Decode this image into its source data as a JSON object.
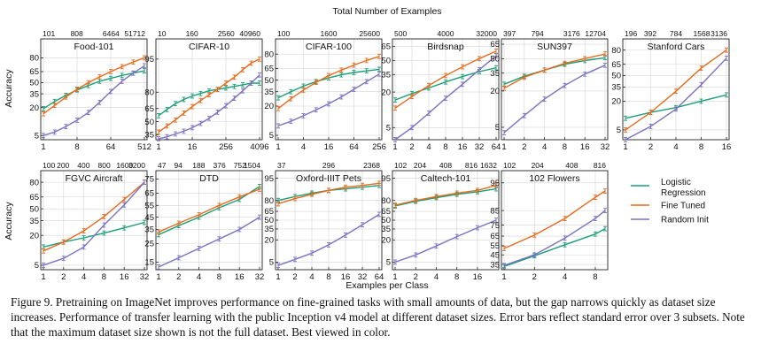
{
  "figure": {
    "top_axis_title": "Total Number of Examples",
    "bottom_axis_title": "Examples per Class",
    "ylabel": "Accuracy",
    "legend": [
      {
        "name": "Logistic Regression",
        "color": "#1a9e77"
      },
      {
        "name": "Fine Tuned",
        "color": "#e66b1f"
      },
      {
        "name": "Random Init",
        "color": "#7b72c2"
      }
    ]
  },
  "caption": "Figure 9. Pretraining on ImageNet improves performance on fine-grained tasks with small amounts of data, but the gap narrows quickly as dataset size increases. Performance of transfer learning with the public Inception v4 model at different dataset sizes. Error bars reflect standard error over 3 subsets. Note that the maximum dataset size shown is not the full dataset. Best viewed in color.",
  "chart_data": [
    {
      "type": "line",
      "title": "Food-101",
      "xscale": "log2",
      "yscale": "logit-like",
      "grid": true,
      "x_ticks": [
        "1",
        "8",
        "64",
        "512"
      ],
      "x_tick_values": [
        1,
        8,
        64,
        512
      ],
      "top_ticks": [
        "101",
        "808",
        "6464",
        "51712"
      ],
      "y_ticks": [
        "5",
        "20",
        "35",
        "50",
        "65",
        "80"
      ],
      "ylim": [
        4,
        92
      ],
      "x": [
        1,
        2,
        4,
        8,
        16,
        32,
        64,
        128,
        256,
        512
      ],
      "series": [
        {
          "name": "Logistic Regression",
          "values": [
            19,
            26,
            33,
            40,
            46,
            52,
            56,
            60,
            63,
            66
          ]
        },
        {
          "name": "Fine Tuned",
          "values": [
            15,
            22,
            31,
            41,
            50,
            58,
            65,
            71,
            76,
            80
          ]
        },
        {
          "name": "Random Init",
          "values": [
            5,
            6,
            8,
            11,
            16,
            25,
            38,
            52,
            63,
            72
          ]
        }
      ]
    },
    {
      "type": "line",
      "title": "CIFAR-10",
      "xscale": "log2",
      "yscale": "logit-like",
      "grid": true,
      "x_ticks": [
        "1",
        "16",
        "256",
        "4096"
      ],
      "x_tick_values": [
        1,
        16,
        256,
        4096
      ],
      "top_ticks": [
        "10",
        "160",
        "2560",
        "40960"
      ],
      "y_ticks": [
        "35",
        "50",
        "65",
        "80",
        "95"
      ],
      "ylim": [
        30,
        98
      ],
      "x": [
        1,
        2,
        4,
        8,
        16,
        32,
        64,
        128,
        256,
        512,
        1024,
        2048,
        4096
      ],
      "series": [
        {
          "name": "Logistic Regression",
          "values": [
            57,
            64,
            70,
            74,
            77,
            79,
            81,
            82,
            83,
            84,
            85,
            86,
            86
          ]
        },
        {
          "name": "Fine Tuned",
          "values": [
            38,
            45,
            52,
            60,
            67,
            73,
            78,
            82,
            86,
            89,
            92,
            94,
            95
          ]
        },
        {
          "name": "Random Init",
          "values": [
            31,
            33,
            36,
            39,
            43,
            48,
            54,
            61,
            68,
            75,
            81,
            86,
            90
          ]
        }
      ]
    },
    {
      "type": "line",
      "title": "CIFAR-100",
      "xscale": "log2",
      "yscale": "logit-like",
      "grid": true,
      "x_ticks": [
        "1",
        "4",
        "16",
        "64",
        "256"
      ],
      "x_tick_values": [
        1,
        4,
        16,
        64,
        256
      ],
      "top_ticks": [
        "100",
        "1600",
        "25600"
      ],
      "y_ticks": [
        "5",
        "20",
        "35",
        "50",
        "65",
        "80"
      ],
      "ylim": [
        4,
        90
      ],
      "x": [
        1,
        2,
        4,
        8,
        16,
        32,
        64,
        128,
        256
      ],
      "series": [
        {
          "name": "Logistic Regression",
          "values": [
            28,
            35,
            42,
            48,
            53,
            57,
            60,
            62,
            64
          ]
        },
        {
          "name": "Fine Tuned",
          "values": [
            18,
            27,
            37,
            47,
            56,
            63,
            69,
            74,
            78
          ]
        },
        {
          "name": "Random Init",
          "values": [
            8,
            10,
            13,
            17,
            22,
            29,
            38,
            48,
            58
          ]
        }
      ]
    },
    {
      "type": "line",
      "title": "Birdsnap",
      "xscale": "log2",
      "yscale": "logit-like",
      "grid": true,
      "x_ticks": [
        "1",
        "2",
        "4",
        "8",
        "16",
        "32",
        "64"
      ],
      "x_tick_values": [
        1,
        2,
        4,
        8,
        16,
        32,
        64
      ],
      "top_ticks": [
        "500",
        "4000",
        "32000"
      ],
      "y_ticks": [
        "5",
        "20",
        "35",
        "50",
        "65"
      ],
      "ylim": [
        3,
        72
      ],
      "x": [
        1,
        2,
        4,
        8,
        16,
        32,
        64
      ],
      "series": [
        {
          "name": "Logistic Regression",
          "values": [
            15,
            19,
            23,
            28,
            33,
            38,
            42
          ]
        },
        {
          "name": "Fine Tuned",
          "values": [
            11,
            17,
            25,
            34,
            43,
            52,
            60
          ]
        },
        {
          "name": "Random Init",
          "values": [
            3,
            5,
            9,
            16,
            26,
            40,
            55
          ]
        }
      ]
    },
    {
      "type": "line",
      "title": "SUN397",
      "xscale": "log2",
      "yscale": "logit-like",
      "grid": true,
      "x_ticks": [
        "1",
        "2",
        "4",
        "8",
        "16",
        "32"
      ],
      "x_tick_values": [
        1,
        2,
        4,
        8,
        16,
        32
      ],
      "top_ticks": [
        "397",
        "794",
        "3176",
        "12704"
      ],
      "y_ticks": [
        "5",
        "20",
        "35",
        "50",
        "65"
      ],
      "ylim": [
        3,
        70
      ],
      "x": [
        1,
        2,
        4,
        8,
        16,
        32
      ],
      "series": [
        {
          "name": "Logistic Regression",
          "values": [
            25,
            32,
            38,
            44,
            48,
            51
          ]
        },
        {
          "name": "Fine Tuned",
          "values": [
            22,
            31,
            38,
            45,
            50,
            55
          ]
        },
        {
          "name": "Random Init",
          "values": [
            4,
            8,
            15,
            24,
            34,
            43
          ]
        }
      ]
    },
    {
      "type": "line",
      "title": "Stanford Cars",
      "xscale": "log2",
      "yscale": "logit-like",
      "grid": true,
      "x_ticks": [
        "1",
        "2",
        "4",
        "8",
        "16"
      ],
      "x_tick_values": [
        1,
        2,
        4,
        8,
        16
      ],
      "top_ticks": [
        "196",
        "392",
        "784",
        "1568",
        "3136"
      ],
      "y_ticks": [
        "5",
        "20",
        "35",
        "50",
        "65",
        "80"
      ],
      "ylim": [
        3,
        88
      ],
      "x": [
        1,
        2,
        4,
        8,
        16
      ],
      "series": [
        {
          "name": "Logistic Regression",
          "values": [
            9,
            12,
            15,
            20,
            26
          ]
        },
        {
          "name": "Fine Tuned",
          "values": [
            5,
            12,
            30,
            60,
            80
          ]
        },
        {
          "name": "Random Init",
          "values": [
            3,
            6,
            14,
            38,
            72
          ]
        }
      ]
    },
    {
      "type": "line",
      "title": "FGVC Aircraft",
      "xscale": "log2",
      "yscale": "logit-like",
      "grid": true,
      "x_ticks": [
        "1",
        "2",
        "4",
        "8",
        "16",
        "32"
      ],
      "x_tick_values": [
        1,
        2,
        4,
        8,
        16,
        32
      ],
      "top_ticks": [
        "100",
        "200",
        "400",
        "800",
        "1600",
        "3200"
      ],
      "y_ticks": [
        "5",
        "20",
        "35",
        "50",
        "65",
        "80"
      ],
      "ylim": [
        4,
        88
      ],
      "x": [
        1,
        2,
        4,
        8,
        16,
        32
      ],
      "series": [
        {
          "name": "Logistic Regression",
          "values": [
            12,
            15,
            18,
            22,
            27,
            33
          ]
        },
        {
          "name": "Fine Tuned",
          "values": [
            10,
            15,
            24,
            40,
            62,
            80
          ]
        },
        {
          "name": "Random Init",
          "values": [
            5,
            7,
            12,
            30,
            55,
            80
          ]
        }
      ]
    },
    {
      "type": "line",
      "title": "DTD",
      "xscale": "log2",
      "yscale": "logit-like",
      "grid": true,
      "x_ticks": [
        "1",
        "2",
        "4",
        "8",
        "16",
        "32"
      ],
      "x_tick_values": [
        1,
        2,
        4,
        8,
        16,
        32
      ],
      "top_ticks": [
        "47",
        "94",
        "188",
        "376",
        "752",
        "1504"
      ],
      "y_ticks": [
        "15",
        "25",
        "35",
        "45",
        "55",
        "65",
        "75"
      ],
      "ylim": [
        12,
        80
      ],
      "x": [
        1,
        2,
        4,
        8,
        16,
        32
      ],
      "series": [
        {
          "name": "Logistic Regression",
          "values": [
            31,
            38,
            45,
            53,
            60,
            70
          ]
        },
        {
          "name": "Fine Tuned",
          "values": [
            33,
            40,
            47,
            55,
            62,
            68
          ]
        },
        {
          "name": "Random Init",
          "values": [
            13,
            17,
            22,
            28,
            35,
            45
          ]
        }
      ]
    },
    {
      "type": "line",
      "title": "Oxford-IIIT Pets",
      "xscale": "log2",
      "yscale": "logit-like",
      "grid": true,
      "x_ticks": [
        "1",
        "2",
        "4",
        "8",
        "16",
        "32",
        "64"
      ],
      "x_tick_values": [
        1,
        2,
        4,
        8,
        16,
        32,
        64
      ],
      "top_ticks": [
        "37",
        "296",
        "2368"
      ],
      "y_ticks": [
        "5",
        "20",
        "35",
        "50",
        "65",
        "80",
        "95"
      ],
      "ylim": [
        3,
        97
      ],
      "x": [
        1,
        2,
        4,
        8,
        16,
        32,
        64
      ],
      "series": [
        {
          "name": "Logistic Regression",
          "values": [
            80,
            84,
            87,
            89,
            90,
            91,
            92
          ]
        },
        {
          "name": "Fine Tuned",
          "values": [
            76,
            82,
            86,
            89,
            91,
            92,
            93
          ]
        },
        {
          "name": "Random Init",
          "values": [
            4,
            6,
            9,
            15,
            26,
            42,
            60
          ]
        }
      ]
    },
    {
      "type": "line",
      "title": "Caltech-101",
      "xscale": "log2",
      "yscale": "logit-like",
      "grid": true,
      "x_ticks": [
        "1",
        "2",
        "4",
        "8",
        "16"
      ],
      "x_tick_values": [
        1,
        2,
        4,
        8,
        16
      ],
      "top_ticks": [
        "102",
        "204",
        "408",
        "816",
        "1632"
      ],
      "y_ticks": [
        "5",
        "20",
        "35",
        "50",
        "65",
        "80",
        "95"
      ],
      "ylim": [
        3,
        97
      ],
      "x": [
        1,
        2,
        4,
        8,
        16,
        30
      ],
      "series": [
        {
          "name": "Logistic Regression",
          "values": [
            73,
            79,
            83,
            86,
            88,
            90
          ]
        },
        {
          "name": "Fine Tuned",
          "values": [
            74,
            80,
            84,
            87,
            89,
            92
          ]
        },
        {
          "name": "Random Init",
          "values": [
            5,
            8,
            14,
            24,
            37,
            50
          ]
        }
      ]
    },
    {
      "type": "line",
      "title": "102 Flowers",
      "xscale": "log2",
      "yscale": "logit-like",
      "grid": true,
      "x_ticks": [
        "1",
        "2",
        "4",
        "8"
      ],
      "x_tick_values": [
        1,
        2,
        4,
        8
      ],
      "top_ticks": [
        "102",
        "204",
        "408",
        "816"
      ],
      "y_ticks": [
        "35",
        "45",
        "55",
        "65",
        "75",
        "85",
        "95"
      ],
      "ylim": [
        30,
        97
      ],
      "x": [
        1,
        2,
        4,
        8,
        10
      ],
      "series": [
        {
          "name": "Logistic Regression",
          "values": [
            33,
            44,
            56,
            67,
            72
          ]
        },
        {
          "name": "Fine Tuned",
          "values": [
            52,
            66,
            80,
            91,
            93
          ]
        },
        {
          "name": "Random Init",
          "values": [
            34,
            45,
            63,
            80,
            85
          ]
        }
      ]
    }
  ]
}
